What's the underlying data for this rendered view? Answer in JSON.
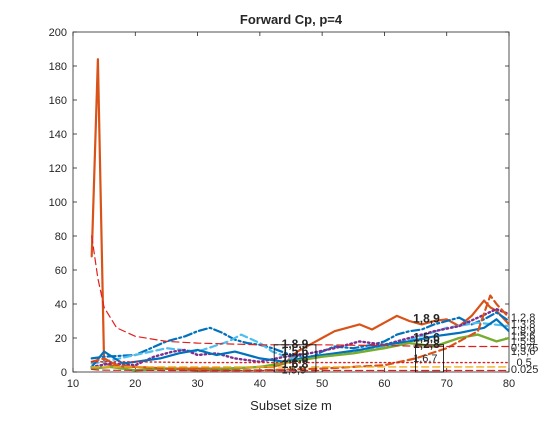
{
  "chart_data": {
    "type": "line",
    "title": "Forward Cp, p=4",
    "xlabel": "Subset size m",
    "ylabel": "",
    "xlim": [
      10,
      80
    ],
    "ylim": [
      0,
      200
    ],
    "xticks": [
      10,
      20,
      30,
      40,
      50,
      60,
      70,
      80
    ],
    "yticks": [
      0,
      20,
      40,
      60,
      80,
      100,
      120,
      140,
      160,
      180,
      200
    ],
    "grid": false,
    "series": [
      {
        "color": "#D95319",
        "style": "solid",
        "width": 2.2,
        "x": [
          13,
          14,
          15,
          17,
          20,
          25,
          30,
          35,
          40,
          42,
          44,
          46,
          48,
          50,
          52,
          54,
          56,
          58,
          60,
          62,
          64,
          66,
          68,
          70,
          72,
          74,
          76,
          77,
          78,
          80
        ],
        "y": [
          68,
          184,
          5,
          3,
          3,
          2,
          2,
          2,
          3,
          3,
          5,
          12,
          16,
          20,
          24,
          26,
          28,
          25,
          29,
          33,
          30,
          28,
          30,
          31,
          27,
          33,
          42,
          38,
          36,
          28
        ]
      },
      {
        "color": "#0072BD",
        "style": "dashdot",
        "width": 2.2,
        "x": [
          13,
          15,
          20,
          25,
          28,
          30,
          32,
          34,
          36,
          38,
          40,
          42,
          45,
          48,
          50,
          52,
          55,
          58,
          60,
          62,
          64,
          66,
          68,
          70,
          72,
          74,
          76,
          78,
          80
        ],
        "y": [
          8,
          9,
          10,
          18,
          21,
          24,
          26,
          23,
          19,
          17,
          16,
          14,
          10,
          8,
          12,
          15,
          14,
          16,
          18,
          22,
          24,
          25,
          28,
          30,
          32,
          28,
          31,
          35,
          30
        ]
      },
      {
        "color": "#4DBEEE",
        "style": "dashed",
        "width": 2.2,
        "x": [
          13,
          15,
          20,
          25,
          30,
          35,
          37,
          40,
          42,
          45,
          50,
          55,
          60,
          65,
          70,
          75,
          80
        ],
        "y": [
          5,
          6,
          10,
          14,
          12,
          18,
          22,
          17,
          12,
          8,
          10,
          12,
          15,
          20,
          26,
          29,
          27
        ]
      },
      {
        "color": "#7E2F8E",
        "style": "dotted",
        "width": 2.4,
        "x": [
          13,
          16,
          20,
          23,
          26,
          28,
          30,
          33,
          36,
          40,
          44,
          48,
          52,
          56,
          60,
          64,
          68,
          72,
          75,
          78,
          80
        ],
        "y": [
          3,
          5,
          4,
          9,
          12,
          13,
          10,
          11,
          8,
          6,
          9,
          11,
          14,
          18,
          16,
          20,
          24,
          27,
          32,
          37,
          34
        ]
      },
      {
        "color": "#0072BD",
        "style": "solid",
        "width": 2.2,
        "x": [
          13,
          15,
          18,
          20,
          24,
          27,
          30,
          33,
          36,
          40,
          44,
          48,
          52,
          56,
          60,
          64,
          68,
          72,
          76,
          78,
          80
        ],
        "y": [
          3,
          12,
          5,
          6,
          8,
          11,
          13,
          10,
          12,
          8,
          6,
          9,
          11,
          13,
          16,
          18,
          21,
          23,
          26,
          31,
          24
        ]
      },
      {
        "color": "#77AC30",
        "style": "solid",
        "width": 2.4,
        "x": [
          13,
          16,
          20,
          25,
          30,
          35,
          40,
          45,
          50,
          55,
          60,
          64,
          68,
          72,
          75,
          78,
          80
        ],
        "y": [
          2,
          3,
          1,
          2,
          1,
          2,
          3,
          6,
          9,
          11,
          14,
          17,
          15,
          20,
          22,
          18,
          20
        ]
      },
      {
        "color": "#D95319",
        "style": "dashed",
        "width": 2.2,
        "x": [
          13,
          15,
          17,
          20,
          25,
          30,
          40,
          50,
          60,
          65,
          70,
          75,
          77,
          78,
          80
        ],
        "y": [
          6,
          8,
          4,
          3,
          2,
          1,
          1,
          2,
          4,
          8,
          14,
          24,
          45,
          40,
          32
        ]
      },
      {
        "color": "#EDB120",
        "style": "dashed",
        "width": 1.4,
        "x": [
          13,
          20,
          30,
          40,
          50,
          60,
          70,
          80
        ],
        "y": [
          3,
          3,
          3,
          3,
          3,
          3,
          3,
          3
        ]
      },
      {
        "color": "#E02020",
        "style": "dashed",
        "width": 1.2,
        "x": [
          13,
          14,
          15,
          17,
          20,
          25,
          30,
          40,
          50,
          60,
          70,
          80
        ],
        "y": [
          80,
          55,
          38,
          26,
          21,
          18,
          17,
          16,
          16,
          15.5,
          15,
          15
        ]
      },
      {
        "color": "#E02020",
        "style": "dashed",
        "width": 1.2,
        "x": [
          13,
          14,
          15,
          17,
          20,
          25,
          30,
          40,
          50,
          60,
          70,
          80
        ],
        "y": [
          1.5,
          1.2,
          1.1,
          1.0,
          1.0,
          0.9,
          0.9,
          0.9,
          0.9,
          0.9,
          0.9,
          0.9
        ]
      },
      {
        "color": "#E02020",
        "style": "dotted",
        "width": 1.4,
        "x": [
          13,
          20,
          30,
          40,
          50,
          60,
          70,
          80
        ],
        "y": [
          6,
          6,
          5.5,
          5.5,
          5.5,
          5.5,
          5.5,
          5.5
        ]
      }
    ],
    "label_boxes": [
      {
        "x1": 42.3,
        "x2": 49,
        "y1": 0,
        "y2": 16
      },
      {
        "x1": 65,
        "x2": 69.5,
        "y1": 0,
        "y2": 16
      }
    ],
    "annotations": [
      {
        "text": "1,8,9",
        "x": 43.5,
        "y": 14,
        "bold": true
      },
      {
        "text": "1,5,6",
        "x": 43.5,
        "y": 10,
        "bold": true
      },
      {
        "text": "1,2,8",
        "x": 43.5,
        "y": 6,
        "bold": true
      },
      {
        "text": "1,6,8",
        "x": 43.5,
        "y": 2.5,
        "bold": true
      },
      {
        "text": "1,5,9",
        "x": 43.5,
        "y": -1,
        "bold": false
      },
      {
        "text": "1,8,9",
        "x": 64.6,
        "y": 29,
        "bold": true
      },
      {
        "text": "1,5,6",
        "x": 64.6,
        "y": 18,
        "bold": true
      },
      {
        "text": "1,2,8",
        "x": 64.6,
        "y": 14,
        "bold": true
      },
      {
        "text": "1,6,7",
        "x": 64.6,
        "y": 6,
        "bold": false
      },
      {
        "text": "1,2,8",
        "x": 80.3,
        "y": 30,
        "bold": false
      },
      {
        "text": "1,3,8",
        "x": 80.3,
        "y": 26,
        "bold": false
      },
      {
        "text": "1,8,9",
        "x": 80.3,
        "y": 22,
        "bold": false
      },
      {
        "text": "1,5,6",
        "x": 80.3,
        "y": 19,
        "bold": false
      },
      {
        "text": "1,5,9",
        "x": 80.3,
        "y": 16,
        "bold": false
      },
      {
        "text": "0.975",
        "x": 80.3,
        "y": 12,
        "bold": false
      },
      {
        "text": "1,3,6",
        "x": 80.3,
        "y": 10,
        "bold": false
      },
      {
        "text": "0.5",
        "x": 81.2,
        "y": 3.5,
        "bold": false
      },
      {
        "text": "0.025",
        "x": 80.3,
        "y": -0.5,
        "bold": false
      }
    ]
  }
}
